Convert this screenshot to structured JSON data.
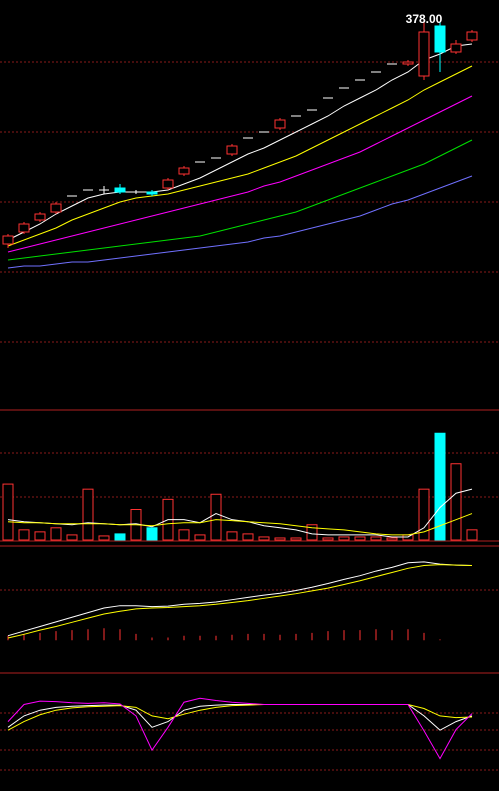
{
  "chart_data": [
    {
      "type": "candlestick",
      "categories": [
        null,
        null,
        null,
        null,
        null,
        null,
        null,
        null,
        null,
        null,
        null,
        null,
        null,
        null,
        null,
        null,
        null,
        null,
        null,
        null,
        null,
        null,
        null,
        null,
        null,
        null,
        null,
        null,
        null,
        null
      ],
      "open": [
        266,
        272,
        278,
        282,
        290,
        293,
        293,
        294,
        292,
        292,
        294,
        301,
        307,
        309,
        311,
        319,
        322,
        324,
        330,
        333,
        339,
        344,
        348,
        352,
        356,
        356,
        350,
        375,
        362,
        368
      ],
      "high": [
        271,
        277,
        282,
        287,
        290,
        293,
        295,
        296,
        293,
        293,
        299,
        305,
        307,
        309,
        316,
        319,
        322,
        329,
        330,
        333,
        339,
        344,
        348,
        352,
        356,
        358,
        378,
        377,
        368,
        373
      ],
      "low": [
        264,
        271,
        277,
        281,
        290,
        293,
        291,
        291,
        291,
        290,
        293,
        300,
        307,
        309,
        310,
        319,
        322,
        323,
        330,
        333,
        339,
        344,
        348,
        352,
        356,
        355,
        348,
        352,
        361,
        367
      ],
      "close": [
        270,
        276,
        281,
        286,
        290,
        293,
        293,
        292,
        292,
        291,
        298,
        304,
        307,
        309,
        315,
        319,
        322,
        328,
        330,
        333,
        339,
        344,
        348,
        352,
        356,
        357,
        372,
        362,
        366,
        372
      ],
      "up_color": "#ff3232",
      "down_color": "#00ffff",
      "flat_color": "#ffffff",
      "ylim": [
        183,
        388
      ],
      "max_label": {
        "value": 378,
        "label": "378.00"
      },
      "series": [
        {
          "color": "#ffffff",
          "values": [
            268,
            272,
            276,
            281,
            285,
            289,
            291,
            292,
            292,
            292,
            293,
            296,
            299,
            303,
            307,
            311,
            314,
            318,
            322,
            326,
            330,
            335,
            339,
            343,
            348,
            352,
            358,
            361,
            365,
            366
          ]
        },
        {
          "color": "#ffff00",
          "values": [
            265,
            268,
            271,
            274,
            278,
            281,
            284,
            287,
            289,
            290,
            291,
            293,
            295,
            297,
            299,
            301,
            304,
            307,
            310,
            314,
            318,
            322,
            326,
            330,
            334,
            338,
            343,
            347,
            351,
            355
          ]
        },
        {
          "color": "#ff00ff",
          "values": [
            262,
            264,
            266,
            268,
            270,
            272,
            274,
            276,
            278,
            280,
            282,
            284,
            286,
            288,
            290,
            292,
            295,
            297,
            300,
            303,
            306,
            309,
            312,
            316,
            320,
            324,
            328,
            332,
            336,
            340
          ]
        },
        {
          "color": "#00e000",
          "values": [
            258,
            259,
            260,
            261,
            262,
            263,
            264,
            265,
            266,
            267,
            268,
            269,
            270,
            272,
            274,
            276,
            278,
            280,
            282,
            285,
            288,
            291,
            294,
            297,
            300,
            303,
            306,
            310,
            314,
            318
          ]
        },
        {
          "color": "#7070ff",
          "values": [
            254,
            255,
            255,
            256,
            257,
            257,
            258,
            259,
            260,
            261,
            262,
            263,
            264,
            265,
            266,
            267,
            269,
            270,
            272,
            274,
            276,
            278,
            280,
            283,
            286,
            288,
            291,
            294,
            297,
            300
          ]
        }
      ]
    },
    {
      "type": "volume",
      "values": [
        55,
        10,
        8,
        12,
        5,
        50,
        4,
        6,
        30,
        12,
        40,
        10,
        5,
        45,
        8,
        6,
        3,
        2,
        2,
        15,
        2,
        3,
        3,
        3,
        2,
        5,
        50,
        105,
        75,
        10
      ],
      "ylim": [
        0,
        120
      ],
      "series": [
        {
          "color": "#ffffff",
          "values": [
            20,
            18,
            17,
            16,
            15,
            17,
            16,
            15,
            16,
            13,
            20,
            20,
            17,
            26,
            20,
            18,
            14,
            12,
            10,
            6,
            5,
            5,
            5,
            5,
            3,
            3,
            12,
            32,
            46,
            50
          ]
        },
        {
          "color": "#ffff00",
          "values": [
            18,
            17,
            17,
            16,
            16,
            16,
            16,
            15,
            15,
            14,
            16,
            17,
            17,
            20,
            19,
            18,
            17,
            16,
            14,
            12,
            11,
            10,
            8,
            6,
            5,
            5,
            8,
            14,
            20,
            26
          ]
        }
      ]
    },
    {
      "type": "macd",
      "values": [
        1,
        1.4,
        1.6,
        2,
        2.2,
        2.4,
        2.6,
        2.4,
        1.4,
        0.6,
        0.6,
        1,
        1,
        1,
        1.2,
        1.4,
        1.4,
        1.2,
        1.4,
        1.6,
        2,
        2.2,
        2.2,
        2.4,
        2.2,
        2.4,
        1.6,
        0.2,
        0,
        0
      ],
      "color": "#ff3232",
      "ylim": [
        -6,
        20
      ],
      "series": [
        {
          "color": "#ffffff",
          "values": [
            1,
            2,
            3,
            4,
            5,
            6,
            7,
            7.5,
            7.5,
            7.3,
            7.4,
            7.8,
            8,
            8.3,
            8.8,
            9.3,
            9.8,
            10.2,
            10.8,
            11.5,
            12.3,
            13.2,
            14,
            15,
            15.8,
            16.8,
            17,
            16.5,
            16.3,
            16.2
          ]
        },
        {
          "color": "#ffff00",
          "values": [
            0.5,
            1.3,
            2.2,
            3,
            3.9,
            4.8,
            5.7,
            6.3,
            6.8,
            7,
            7.1,
            7.3,
            7.5,
            7.8,
            8.2,
            8.6,
            9.1,
            9.6,
            10.1,
            10.7,
            11.3,
            12.1,
            12.9,
            13.8,
            14.7,
            15.6,
            16.2,
            16.4,
            16.3,
            16.2
          ]
        }
      ]
    },
    {
      "type": "line",
      "ylim": [
        -50,
        150
      ],
      "series": [
        {
          "color": "#ffffff",
          "values": [
            60,
            80,
            90,
            95,
            97,
            98,
            99,
            99,
            90,
            60,
            70,
            90,
            97,
            99,
            100,
            100,
            100,
            100,
            100,
            100,
            100,
            100,
            100,
            100,
            100,
            100,
            80,
            55,
            70,
            80
          ]
        },
        {
          "color": "#ffff00",
          "values": [
            55,
            70,
            82,
            90,
            94,
            96,
            97,
            98,
            95,
            80,
            75,
            83,
            90,
            95,
            98,
            99,
            100,
            100,
            100,
            100,
            100,
            100,
            100,
            100,
            100,
            100,
            93,
            80,
            77,
            78
          ]
        },
        {
          "color": "#ff00ff",
          "values": [
            70,
            100,
            106,
            105,
            103,
            102,
            103,
            101,
            80,
            20,
            60,
            104,
            111,
            107,
            104,
            102,
            100,
            100,
            100,
            100,
            100,
            100,
            100,
            100,
            100,
            100,
            54,
            5,
            56,
            84
          ]
        }
      ]
    }
  ]
}
